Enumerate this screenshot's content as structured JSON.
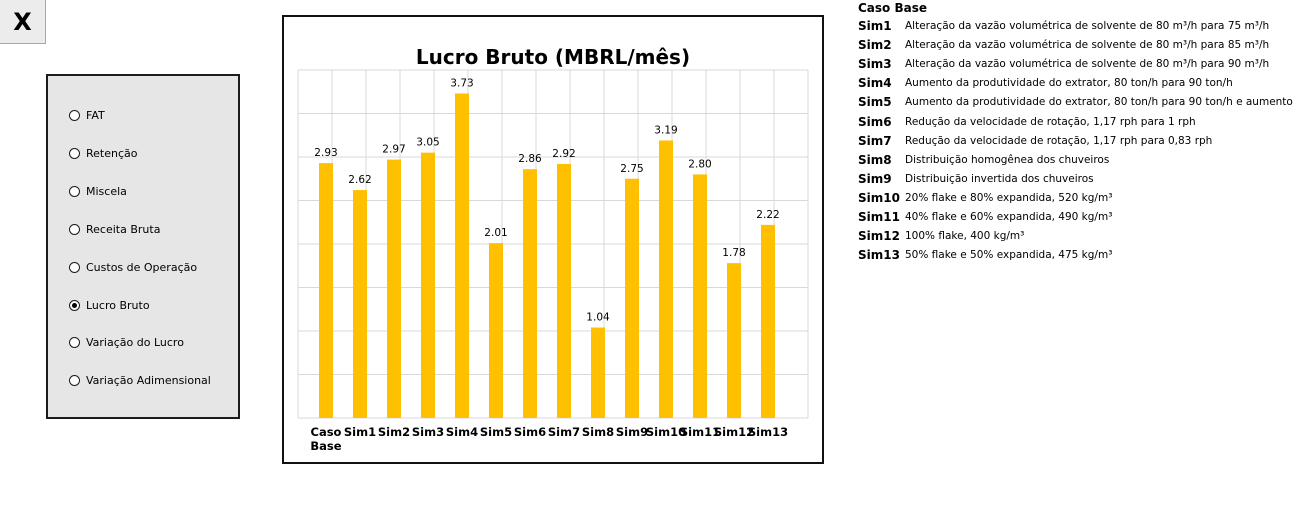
{
  "close_button": {
    "label": "X"
  },
  "radio_options": [
    {
      "label": "FAT",
      "checked": false
    },
    {
      "label": "Retenção",
      "checked": false
    },
    {
      "label": "Miscela",
      "checked": false
    },
    {
      "label": "Receita Bruta",
      "checked": false
    },
    {
      "label": "Custos de Operação",
      "checked": false
    },
    {
      "label": "Lucro Bruto",
      "checked": true
    },
    {
      "label": "Variação do Lucro",
      "checked": false
    },
    {
      "label": "Variação Adimensional",
      "checked": false
    }
  ],
  "chart_data": {
    "type": "bar",
    "title": "Lucro Bruto (MBRL/mês)",
    "categories": [
      "Caso Base",
      "Sim1",
      "Sim2",
      "Sim3",
      "Sim4",
      "Sim5",
      "Sim6",
      "Sim7",
      "Sim8",
      "Sim9",
      "Sim10",
      "Sim11",
      "Sim12",
      "Sim13"
    ],
    "values": [
      2.93,
      2.62,
      2.97,
      3.05,
      3.73,
      2.01,
      2.86,
      2.92,
      1.04,
      2.75,
      3.19,
      2.8,
      1.78,
      2.22
    ],
    "value_labels": [
      "2.93",
      "2.62",
      "2.97",
      "3.05",
      "3.73",
      "2.01",
      "2.86",
      "2.92",
      "1.04",
      "2.75",
      "3.19",
      "2.80",
      "1.78",
      "2.22"
    ],
    "ylim": [
      0,
      4
    ],
    "grid": true,
    "legend": "none",
    "bar_color": "#FFC000"
  },
  "legend_panel": {
    "header": "Caso Base",
    "items": [
      {
        "key": "Sim1",
        "desc": "Alteração da vazão volumétrica de solvente de 80 m³/h para 75 m³/h"
      },
      {
        "key": "Sim2",
        "desc": "Alteração da vazão volumétrica de solvente de 80 m³/h para 85 m³/h"
      },
      {
        "key": "Sim3",
        "desc": "Alteração da vazão volumétrica de solvente de 80 m³/h para 90 m³/h"
      },
      {
        "key": "Sim4",
        "desc": "Aumento da produtividade do extrator, 80 ton/h para 90 ton/h"
      },
      {
        "key": "Sim5",
        "desc": "Aumento da produtividade do extrator, 80 ton/h para 90 ton/h e aumento"
      },
      {
        "key": "Sim6",
        "desc": "Redução da velocidade de rotação, 1,17 rph para 1 rph"
      },
      {
        "key": "Sim7",
        "desc": "Redução da velocidade de rotação, 1,17 rph para 0,83 rph"
      },
      {
        "key": "Sim8",
        "desc": "Distribuição homogênea dos chuveiros"
      },
      {
        "key": "Sim9",
        "desc": "Distribuição invertida dos chuveiros"
      },
      {
        "key": "Sim10",
        "desc": "20% flake e 80% expandida, 520 kg/m³"
      },
      {
        "key": "Sim11",
        "desc": "40% flake e 60% expandida, 490 kg/m³"
      },
      {
        "key": "Sim12",
        "desc": "100% flake, 400 kg/m³"
      },
      {
        "key": "Sim13",
        "desc": "50% flake e 50% expandida, 475 kg/m³"
      }
    ]
  }
}
